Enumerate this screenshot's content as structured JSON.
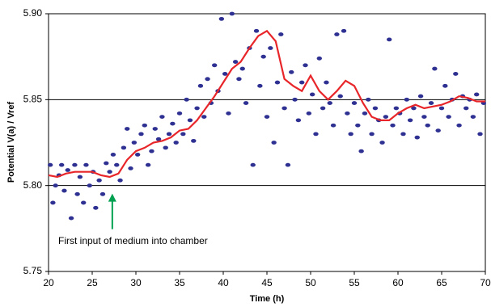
{
  "chart_data": {
    "type": "scatter",
    "xlabel": "Time  (h)",
    "ylabel": "Potential  V(a) / Vref",
    "xlim": [
      20,
      70
    ],
    "xticks": [
      20,
      25,
      30,
      35,
      40,
      45,
      50,
      55,
      60,
      65,
      70
    ],
    "ylim": [
      5.75,
      5.9
    ],
    "yticks": [
      {
        "value": 5.75,
        "label": "5.75"
      },
      {
        "value": 5.8,
        "label": "5.80"
      },
      {
        "value": 5.85,
        "label": "5.85"
      },
      {
        "value": 5.9,
        "label": "5.90"
      }
    ],
    "grid": true,
    "annotation": {
      "text": "First input of medium into chamber",
      "x": 27.3,
      "y": 5.8,
      "color": "#00a050"
    },
    "series": [
      {
        "type": "scatter",
        "color": "#2e3192",
        "x": [
          20.2,
          20.5,
          20.8,
          21.2,
          21.5,
          21.8,
          22.2,
          22.6,
          23,
          23.3,
          23.6,
          24,
          24.3,
          24.7,
          25.1,
          25.4,
          25.8,
          26.2,
          26.6,
          27,
          27.4,
          27.8,
          28.2,
          28.6,
          29,
          29.4,
          29.8,
          30.2,
          30.6,
          31,
          31.4,
          31.8,
          32.2,
          32.6,
          33,
          33.4,
          33.8,
          34.2,
          34.6,
          35,
          35.4,
          35.8,
          36.2,
          36.6,
          37,
          37.4,
          37.8,
          38.2,
          38.6,
          39,
          39.4,
          39.8,
          40.2,
          40.6,
          41,
          41.4,
          41.8,
          42.2,
          42.6,
          43,
          43.4,
          43.8,
          44.2,
          44.6,
          45,
          45.4,
          45.8,
          46.2,
          46.6,
          47,
          47.4,
          47.8,
          48.2,
          48.6,
          49,
          49.4,
          49.8,
          50.2,
          50.6,
          51,
          51.4,
          51.8,
          52.2,
          52.6,
          53,
          53.4,
          53.8,
          54.2,
          54.6,
          55,
          55.4,
          55.8,
          56.2,
          56.6,
          57,
          57.4,
          57.8,
          58.2,
          58.6,
          59,
          59.4,
          59.8,
          60.2,
          60.6,
          61,
          61.4,
          61.8,
          62.2,
          62.6,
          63,
          63.4,
          63.8,
          64.2,
          64.6,
          65,
          65.4,
          65.8,
          66.2,
          66.6,
          67,
          67.4,
          67.8,
          68.2,
          68.6,
          69,
          69.4,
          69.8
        ],
        "values": [
          5.812,
          5.79,
          5.8,
          5.806,
          5.812,
          5.797,
          5.809,
          5.781,
          5.812,
          5.795,
          5.805,
          5.79,
          5.812,
          5.8,
          5.808,
          5.787,
          5.803,
          5.795,
          5.813,
          5.808,
          5.818,
          5.812,
          5.803,
          5.822,
          5.833,
          5.81,
          5.825,
          5.818,
          5.83,
          5.835,
          5.812,
          5.82,
          5.833,
          5.827,
          5.84,
          5.822,
          5.83,
          5.836,
          5.825,
          5.842,
          5.83,
          5.85,
          5.838,
          5.826,
          5.845,
          5.858,
          5.84,
          5.862,
          5.848,
          5.87,
          5.855,
          5.897,
          5.865,
          5.842,
          5.9,
          5.872,
          5.862,
          5.868,
          5.848,
          5.88,
          5.812,
          5.89,
          5.858,
          5.875,
          5.84,
          5.88,
          5.825,
          5.86,
          5.888,
          5.845,
          5.812,
          5.866,
          5.85,
          5.838,
          5.86,
          5.87,
          5.842,
          5.853,
          5.83,
          5.874,
          5.845,
          5.86,
          5.848,
          5.835,
          5.888,
          5.852,
          5.89,
          5.842,
          5.83,
          5.848,
          5.835,
          5.82,
          5.842,
          5.85,
          5.83,
          5.845,
          5.838,
          5.825,
          5.84,
          5.885,
          5.835,
          5.845,
          5.842,
          5.83,
          5.85,
          5.838,
          5.845,
          5.828,
          5.852,
          5.84,
          5.835,
          5.848,
          5.868,
          5.832,
          5.845,
          5.858,
          5.84,
          5.85,
          5.865,
          5.835,
          5.852,
          5.845,
          5.85,
          5.84,
          5.853,
          5.83,
          5.848
        ]
      },
      {
        "type": "line",
        "color": "#e8262a",
        "x": [
          20,
          21,
          22,
          23,
          24,
          25,
          26,
          27,
          28,
          29,
          30,
          31,
          32,
          33,
          34,
          35,
          36,
          37,
          38,
          39,
          40,
          41,
          42,
          43,
          44,
          45,
          46,
          47,
          48,
          49,
          50,
          51,
          52,
          53,
          54,
          55,
          56,
          57,
          58,
          59,
          60,
          61,
          62,
          63,
          64,
          65,
          66,
          67,
          68,
          69,
          70
        ],
        "values": [
          5.806,
          5.805,
          5.807,
          5.808,
          5.808,
          5.808,
          5.806,
          5.805,
          5.807,
          5.815,
          5.82,
          5.822,
          5.825,
          5.826,
          5.828,
          5.832,
          5.833,
          5.838,
          5.845,
          5.852,
          5.86,
          5.868,
          5.872,
          5.88,
          5.887,
          5.89,
          5.884,
          5.862,
          5.858,
          5.855,
          5.864,
          5.855,
          5.85,
          5.855,
          5.861,
          5.858,
          5.848,
          5.84,
          5.838,
          5.838,
          5.842,
          5.845,
          5.847,
          5.845,
          5.846,
          5.847,
          5.849,
          5.852,
          5.851,
          5.849,
          5.849
        ]
      }
    ]
  }
}
